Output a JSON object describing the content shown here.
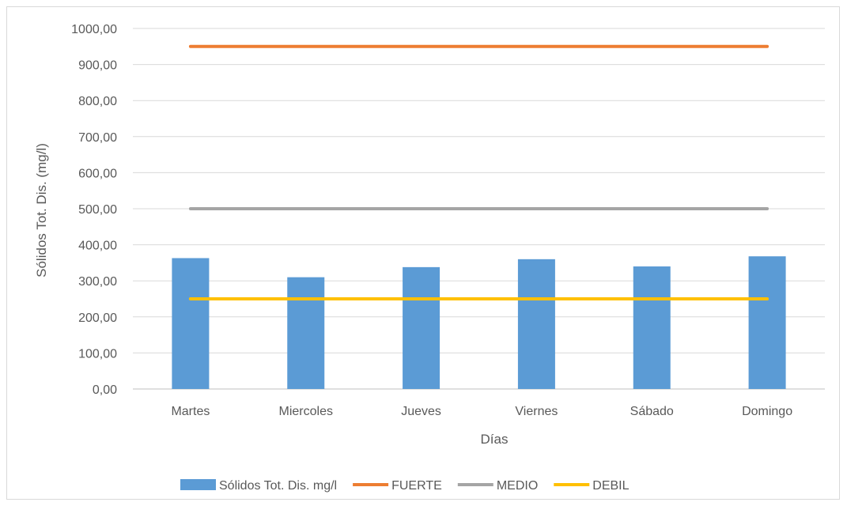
{
  "chart_data": {
    "type": "bar",
    "title": "",
    "xlabel": "Días",
    "ylabel": "Sólidos Tot. Dis. (mg/l)",
    "ylim": [
      0,
      1000
    ],
    "yticks": [
      "0,00",
      "100,00",
      "200,00",
      "300,00",
      "400,00",
      "500,00",
      "600,00",
      "700,00",
      "800,00",
      "900,00",
      "1000,00"
    ],
    "ytick_values": [
      0,
      100,
      200,
      300,
      400,
      500,
      600,
      700,
      800,
      900,
      1000
    ],
    "categories": [
      "Martes",
      "Miercoles",
      "Jueves",
      "Viernes",
      "Sábado",
      "Domingo"
    ],
    "grid": true,
    "legend_position": "bottom",
    "series": [
      {
        "name": "Sólidos Tot. Dis. mg/l",
        "kind": "bar",
        "color": "#5b9bd5",
        "values": [
          363,
          310,
          338,
          360,
          340,
          368
        ]
      },
      {
        "name": "FUERTE",
        "kind": "line",
        "color": "#ed7d31",
        "values": [
          950,
          950,
          950,
          950,
          950,
          950
        ]
      },
      {
        "name": "MEDIO",
        "kind": "line",
        "color": "#a5a5a5",
        "values": [
          500,
          500,
          500,
          500,
          500,
          500
        ]
      },
      {
        "name": "DEBIL",
        "kind": "line",
        "color": "#ffc000",
        "values": [
          250,
          250,
          250,
          250,
          250,
          250
        ]
      }
    ]
  }
}
